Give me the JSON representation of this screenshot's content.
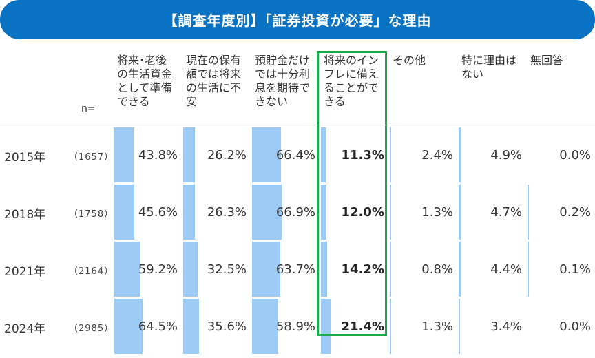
{
  "title": "【調査年度別】「証券投資が必要」な理由",
  "chart_data": {
    "type": "table",
    "n_label": "n=",
    "columns": [
      "将来･老後の生活資金として準備できる",
      "現在の保有額では将来の生活に不安",
      "預貯金だけでは十分利息を期待できない",
      "将来のインフレに備えることができる",
      "その他",
      "特に理由はない",
      "無回答"
    ],
    "column_lines": [
      [
        "将来･老後",
        "の生活資金",
        "として準備",
        "できる"
      ],
      [
        "現在の保有",
        "額では将来",
        "の生活に不",
        "安"
      ],
      [
        "預貯金だけ",
        "では十分利",
        "息を期待で",
        "きない"
      ],
      [
        "将来のイン",
        "フレに備え",
        "ることがで",
        "きる"
      ],
      [
        "その他"
      ],
      [
        "特に理由は",
        "ない"
      ],
      [
        "無回答"
      ]
    ],
    "highlighted_column": 3,
    "rows": [
      {
        "year": "2015年",
        "n": "（1657）",
        "values": [
          43.8,
          26.2,
          66.4,
          11.3,
          2.4,
          4.9,
          0.0
        ],
        "labels": [
          "43.8%",
          "26.2%",
          "66.4%",
          "11.3%",
          "2.4%",
          "4.9%",
          "0.0%"
        ]
      },
      {
        "year": "2018年",
        "n": "（1758）",
        "values": [
          45.6,
          26.3,
          66.9,
          12.0,
          1.3,
          4.7,
          0.2
        ],
        "labels": [
          "45.6%",
          "26.3%",
          "66.9%",
          "12.0%",
          "1.3%",
          "4.7%",
          "0.2%"
        ]
      },
      {
        "year": "2021年",
        "n": "（2164）",
        "values": [
          59.2,
          32.5,
          63.7,
          14.2,
          0.8,
          4.4,
          0.1
        ],
        "labels": [
          "59.2%",
          "32.5%",
          "63.7%",
          "14.2%",
          "0.8%",
          "4.4%",
          "0.1%"
        ]
      },
      {
        "year": "2024年",
        "n": "（2985）",
        "values": [
          64.5,
          35.6,
          58.9,
          21.4,
          1.3,
          3.4,
          0.0
        ],
        "labels": [
          "64.5%",
          "35.6%",
          "58.9%",
          "21.4%",
          "1.3%",
          "3.4%",
          "0.0%"
        ]
      }
    ],
    "colors": {
      "bar": "#9ecbf6",
      "title_bg": "#0a72c2",
      "highlight": "#1aab4b"
    }
  }
}
